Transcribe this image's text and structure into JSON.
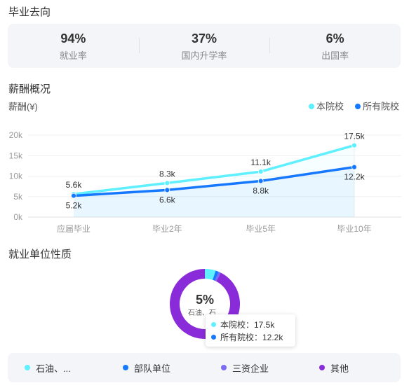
{
  "sections": {
    "destination": "毕业去向",
    "salary": "薪酬概况",
    "employer": "就业单位性质"
  },
  "stats": [
    {
      "value": "94%",
      "label": "就业率"
    },
    {
      "value": "37%",
      "label": "国内升学率"
    },
    {
      "value": "6%",
      "label": "出国率"
    }
  ],
  "colors": {
    "this_school": "#5ef0ff",
    "all_schools": "#1677ff",
    "foreign": "#7b6cf6",
    "other": "#8a2bd9"
  },
  "chart_data": {
    "type": "line",
    "ylabel": "薪酬(¥)",
    "categories": [
      "应届毕业",
      "毕业2年",
      "毕业5年",
      "毕业10年"
    ],
    "ylim": [
      0,
      20000
    ],
    "yticks": [
      "0k",
      "5k",
      "10k",
      "15k",
      "20k"
    ],
    "legend_position": "top-right",
    "series": [
      {
        "name": "本院校",
        "values": [
          5600,
          8300,
          11100,
          17500
        ],
        "labels": [
          "5.6k",
          "8.3k",
          "11.1k",
          "17.5k"
        ],
        "color": "#5ef0ff"
      },
      {
        "name": "所有院校",
        "values": [
          5200,
          6600,
          8800,
          12200
        ],
        "labels": [
          "5.2k",
          "6.6k",
          "8.8k",
          "12.2k"
        ],
        "color": "#1677ff"
      }
    ]
  },
  "donut": {
    "center_value": "5%",
    "center_sub": "石油、石...",
    "segments": [
      {
        "name": "石油、...",
        "percent": 5,
        "color": "#5ef0ff"
      },
      {
        "name": "部队单位",
        "percent": 1.5,
        "color": "#1677ff"
      },
      {
        "name": "三资企业",
        "percent": 1,
        "color": "#7b6cf6"
      },
      {
        "name": "其他",
        "percent": 92.5,
        "color": "#8a2bd9"
      }
    ]
  },
  "tooltip": {
    "rows": [
      {
        "label": "本院校：17.5k",
        "color": "#5ef0ff"
      },
      {
        "label": "所有院校：12.2k",
        "color": "#1677ff"
      }
    ]
  }
}
